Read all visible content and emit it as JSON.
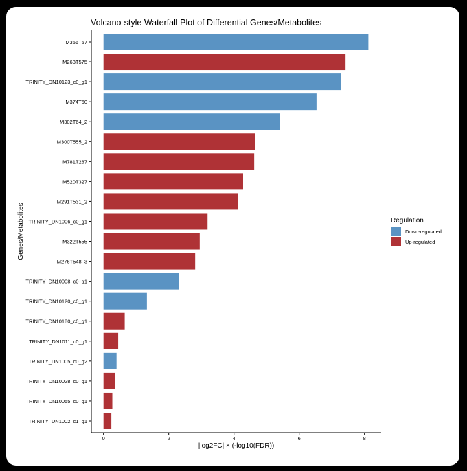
{
  "chart_data": {
    "type": "bar",
    "orientation": "horizontal",
    "title": "Volcano-style Waterfall Plot of Differential Genes/Metabolites",
    "xlabel": "|log2FC| × (-log10(FDR))",
    "ylabel": "Genes/Metabolites",
    "xlim": [
      -0.35,
      8.5
    ],
    "xticks": [
      0,
      2,
      4,
      6,
      8
    ],
    "grid": false,
    "legend": {
      "title": "Regulation",
      "position": "right",
      "entries": [
        "Down-regulated",
        "Up-regulated"
      ]
    },
    "colors": {
      "Down-regulated": "#5A93C3",
      "Up-regulated": "#AF3236"
    },
    "categories": [
      "M356T57",
      "M263T575",
      "TRINITY_DN10123_c0_g1",
      "M374T60",
      "M302T64_2",
      "M300T555_2",
      "M781T287",
      "M520T327",
      "M291T531_2",
      "TRINITY_DN1006_c0_g1",
      "M322T555",
      "M276T548_3",
      "TRINITY_DN10008_c0_g1",
      "TRINITY_DN10120_c0_g1",
      "TRINITY_DN10180_c0_g1",
      "TRINITY_DN1011_c0_g1",
      "TRINITY_DN1005_c0_g2",
      "TRINITY_DN10028_c0_g1",
      "TRINITY_DN10055_c0_g1",
      "TRINITY_DN1002_c1_g1"
    ],
    "values": [
      8.12,
      7.42,
      7.27,
      6.53,
      5.4,
      4.64,
      4.62,
      4.28,
      4.13,
      3.19,
      2.95,
      2.81,
      2.31,
      1.33,
      0.65,
      0.45,
      0.4,
      0.36,
      0.27,
      0.24
    ],
    "regulation": [
      "Down-regulated",
      "Up-regulated",
      "Down-regulated",
      "Down-regulated",
      "Down-regulated",
      "Up-regulated",
      "Up-regulated",
      "Up-regulated",
      "Up-regulated",
      "Up-regulated",
      "Up-regulated",
      "Up-regulated",
      "Down-regulated",
      "Down-regulated",
      "Up-regulated",
      "Up-regulated",
      "Down-regulated",
      "Up-regulated",
      "Up-regulated",
      "Up-regulated"
    ]
  }
}
